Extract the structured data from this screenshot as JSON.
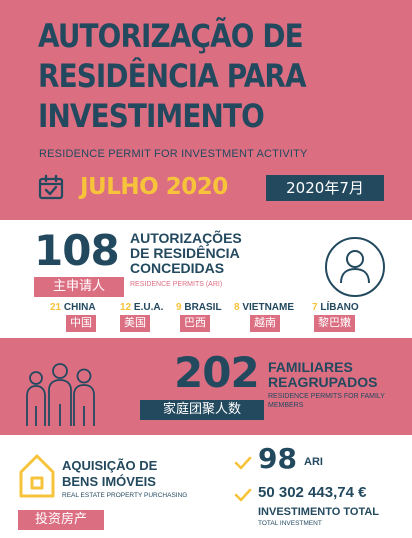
{
  "header": {
    "title_lines": [
      "AUTORIZAÇÃO DE",
      "RESIDÊNCIA PARA",
      "INVESTIMENTO"
    ],
    "subtitle": "RESIDENCE PERMIT FOR INVESTMENT ACTIVITY",
    "month": "JULHO 2020",
    "month_cn": "2020年7月",
    "calendar_icon": "calendar-check-icon"
  },
  "permits": {
    "count": "108",
    "count_cn": "主申请人",
    "title_lines": [
      "AUTORIZAÇÕES",
      "DE RESIDÊNCIA",
      "CONCEDIDAS"
    ],
    "subtitle": "RESIDENCE PERMITS (ARI)",
    "icon": "person-icon",
    "countries": [
      {
        "num": "21",
        "name": "CHINA",
        "cn": "中国"
      },
      {
        "num": "12",
        "name": "E.U.A.",
        "cn": "美国"
      },
      {
        "num": "9",
        "name": "BRASIL",
        "cn": "巴西"
      },
      {
        "num": "8",
        "name": "VIETNAME",
        "cn": "越南"
      },
      {
        "num": "7",
        "name": "LÍBANO",
        "cn": "黎巴嫩"
      }
    ]
  },
  "family": {
    "count": "202",
    "count_cn": "家庭团聚人数",
    "title_lines": [
      "FAMILIARES",
      "REAGRUPADOS"
    ],
    "subtitle": "RESIDENCE PERMITS FOR FAMILY MEMBERS",
    "icon": "family-icon"
  },
  "property": {
    "title_lines": [
      "AQUISIÇÃO DE",
      "BENS IMÓVEIS"
    ],
    "subtitle": "REAL ESTATE PROPERTY PURCHASING",
    "cn": "投资房产",
    "icon": "house-icon",
    "ari_count": "98",
    "ari_label": "ARI",
    "investment_value": "50 302 443,74 €",
    "investment_label": "INVESTIMENTO TOTAL",
    "investment_sub": "TOTAL INVESTMENT",
    "check_icon": "checkmark-icon"
  },
  "colors": {
    "pink": "#dc6e82",
    "navy": "#23495f",
    "yellow": "#f6c33b"
  }
}
